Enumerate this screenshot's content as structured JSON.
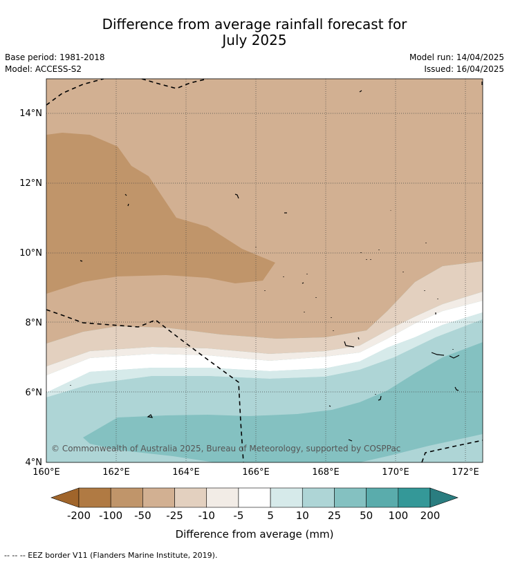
{
  "title_line1": "Difference from average rainfall forecast for",
  "title_line2": "July 2025",
  "base_period": "Base period: 1981-2018",
  "model": "Model: ACCESS-S2",
  "model_run": "Model run: 14/04/2025",
  "issued": "Issued: 16/04/2025",
  "copyright": "© Commonwealth of Australia 2025, Bureau of Meteorology, supported by COSPPac",
  "lat_labels": [
    "14°N",
    "12°N",
    "10°N",
    "8°N",
    "6°N",
    "4°N"
  ],
  "lon_labels": [
    "160°E",
    "162°E",
    "164°E",
    "166°E",
    "168°E",
    "170°E",
    "172°E"
  ],
  "colorbar": {
    "ticks": [
      "-200",
      "-100",
      "-50",
      "-25",
      "-10",
      "-5",
      "5",
      "10",
      "25",
      "50",
      "100",
      "200"
    ],
    "colors": [
      "#a0652b",
      "#b07a43",
      "#c0956a",
      "#d2b092",
      "#e3d0bf",
      "#f2ece6",
      "#ffffff",
      "#d6eaea",
      "#aed5d6",
      "#84c1c1",
      "#5aacac",
      "#349898",
      "#2a7d80"
    ],
    "label": "Difference from average (mm)"
  },
  "footer": "--  --  -- EEZ border V11 (Flanders Marine Institute, 2019)."
}
